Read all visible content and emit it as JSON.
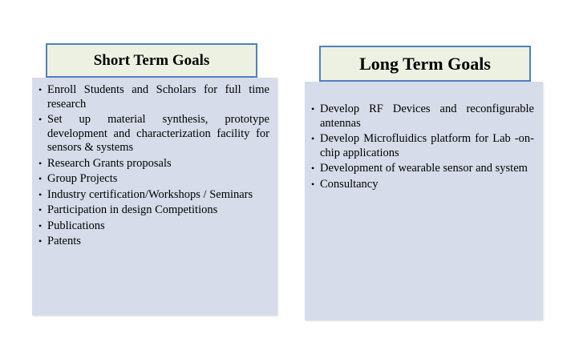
{
  "short_term": {
    "title": "Short Term Goals",
    "items": [
      "Enroll Students and Scholars for full time research",
      "Set up material synthesis, prototype development and characterization facility for sensors & systems",
      "Research Grants proposals",
      "Group Projects",
      "Industry certification/Workshops / Seminars",
      "Participation in design Competitions",
      "Publications",
      "Patents"
    ]
  },
  "long_term": {
    "title": "Long Term Goals",
    "items": [
      "Develop RF Devices and reconfigurable antennas",
      "Develop Microfluidics platform for Lab -on-chip applications",
      "Development of wearable sensor and system",
      "Consultancy"
    ]
  },
  "colors": {
    "panel_fill": "#d6dce9",
    "title_fill": "#edf1e2",
    "title_border": "#4f81bd"
  }
}
